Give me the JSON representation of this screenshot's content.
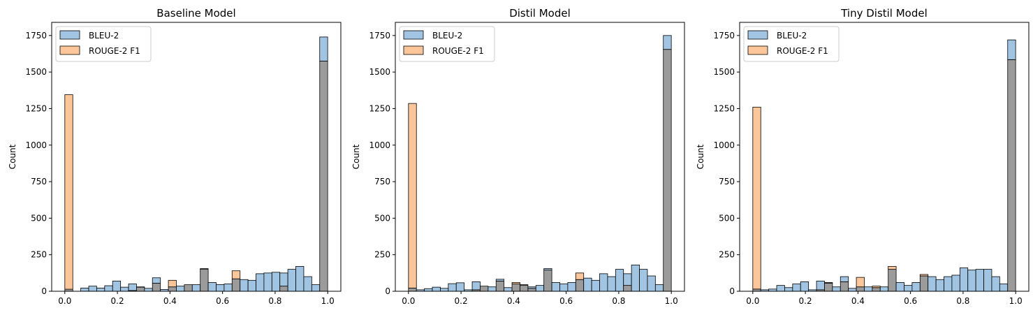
{
  "chart_data": [
    {
      "type": "histogram",
      "title": "Baseline Model",
      "xlabel": "",
      "ylabel": "Count",
      "xlim": [
        -0.05,
        1.05
      ],
      "ylim": [
        0,
        1840
      ],
      "x_ticks": [
        0.0,
        0.2,
        0.4,
        0.6,
        0.8,
        1.0
      ],
      "x_tick_labels": [
        "0.0",
        "0.2",
        "0.4",
        "0.6",
        "0.8",
        "1.0"
      ],
      "y_ticks": [
        0,
        250,
        500,
        750,
        1000,
        1250,
        1500,
        1750
      ],
      "y_tick_labels": [
        "0",
        "250",
        "500",
        "750",
        "1000",
        "1250",
        "1500",
        "1750"
      ],
      "bin_start": 0.0,
      "bin_width": 0.0303,
      "grid": false,
      "legend_position": "top-left",
      "series": [
        {
          "name": "BLEU-2",
          "color": "#a0c4e2",
          "values": [
            14,
            0,
            22,
            35,
            22,
            38,
            70,
            28,
            50,
            28,
            20,
            92,
            12,
            30,
            35,
            45,
            45,
            150,
            60,
            46,
            50,
            85,
            80,
            75,
            120,
            125,
            130,
            125,
            150,
            170,
            100,
            45,
            1740
          ]
        },
        {
          "name": "ROUGE-2 F1",
          "color": "#fdc69a",
          "values": [
            1345,
            0,
            0,
            0,
            0,
            0,
            0,
            0,
            5,
            30,
            0,
            55,
            0,
            75,
            0,
            45,
            0,
            155,
            0,
            0,
            0,
            140,
            0,
            0,
            0,
            0,
            0,
            35,
            0,
            0,
            0,
            0,
            1575
          ]
        }
      ]
    },
    {
      "type": "histogram",
      "title": "Distil Model",
      "xlabel": "",
      "ylabel": "Count",
      "xlim": [
        -0.05,
        1.05
      ],
      "ylim": [
        0,
        1840
      ],
      "x_ticks": [
        0.0,
        0.2,
        0.4,
        0.6,
        0.8,
        1.0
      ],
      "x_tick_labels": [
        "0.0",
        "0.2",
        "0.4",
        "0.6",
        "0.8",
        "1.0"
      ],
      "y_ticks": [
        0,
        250,
        500,
        750,
        1000,
        1250,
        1500,
        1750
      ],
      "y_tick_labels": [
        "0",
        "250",
        "500",
        "750",
        "1000",
        "1250",
        "1500",
        "1750"
      ],
      "bin_start": 0.0,
      "bin_width": 0.0303,
      "grid": false,
      "legend_position": "top-left",
      "series": [
        {
          "name": "BLEU-2",
          "color": "#a0c4e2",
          "values": [
            22,
            10,
            18,
            28,
            20,
            52,
            58,
            10,
            65,
            35,
            30,
            82,
            25,
            50,
            40,
            30,
            40,
            155,
            60,
            50,
            60,
            80,
            90,
            75,
            120,
            100,
            150,
            120,
            180,
            150,
            105,
            45,
            1750
          ]
        },
        {
          "name": "ROUGE-2 F1",
          "color": "#fdc69a",
          "values": [
            1285,
            0,
            0,
            0,
            0,
            0,
            0,
            0,
            10,
            35,
            0,
            70,
            0,
            60,
            45,
            20,
            0,
            145,
            0,
            0,
            0,
            125,
            0,
            0,
            0,
            0,
            0,
            40,
            0,
            0,
            0,
            0,
            1655
          ]
        }
      ]
    },
    {
      "type": "histogram",
      "title": "Tiny Distil Model",
      "xlabel": "",
      "ylabel": "Count",
      "xlim": [
        -0.05,
        1.05
      ],
      "ylim": [
        0,
        1840
      ],
      "x_ticks": [
        0.0,
        0.2,
        0.4,
        0.6,
        0.8,
        1.0
      ],
      "x_tick_labels": [
        "0.0",
        "0.2",
        "0.4",
        "0.6",
        "0.8",
        "1.0"
      ],
      "y_ticks": [
        0,
        250,
        500,
        750,
        1000,
        1250,
        1500,
        1750
      ],
      "y_tick_labels": [
        "0",
        "250",
        "500",
        "750",
        "1000",
        "1250",
        "1500",
        "1750"
      ],
      "bin_start": 0.0,
      "bin_width": 0.0303,
      "grid": false,
      "legend_position": "top-left",
      "series": [
        {
          "name": "BLEU-2",
          "color": "#a0c4e2",
          "values": [
            15,
            10,
            15,
            40,
            25,
            50,
            65,
            10,
            70,
            55,
            30,
            100,
            20,
            30,
            30,
            25,
            30,
            150,
            60,
            40,
            60,
            105,
            100,
            80,
            100,
            110,
            160,
            145,
            150,
            150,
            100,
            50,
            1720
          ]
        },
        {
          "name": "ROUGE-2 F1",
          "color": "#fdc69a",
          "values": [
            1260,
            0,
            0,
            0,
            0,
            0,
            0,
            0,
            10,
            60,
            0,
            65,
            0,
            95,
            0,
            35,
            0,
            170,
            0,
            0,
            0,
            115,
            0,
            0,
            0,
            0,
            0,
            0,
            0,
            0,
            0,
            0,
            1585
          ]
        }
      ]
    }
  ]
}
